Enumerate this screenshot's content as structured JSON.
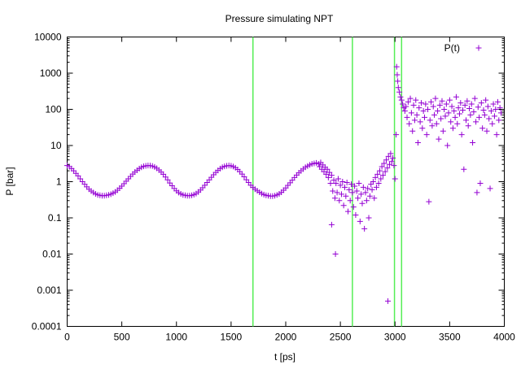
{
  "chart_data": {
    "type": "scatter",
    "title": "Pressure simulating NPT",
    "xlabel": "t [ps]",
    "ylabel": "P [bar]",
    "xlim": [
      0,
      4000
    ],
    "ylim": [
      0.0001,
      10000
    ],
    "yscale": "log",
    "grid": false,
    "legend_position": "top-right",
    "x_ticks": [
      0,
      500,
      1000,
      1500,
      2000,
      2500,
      3000,
      3500,
      4000
    ],
    "x_tick_labels": [
      "0",
      "500",
      "1000",
      "1500",
      "2000",
      "2500",
      "3000",
      "3500",
      "4000"
    ],
    "y_ticks": [
      0.0001,
      0.001,
      0.01,
      0.1,
      1,
      10,
      100,
      1000,
      10000
    ],
    "y_tick_labels": [
      "0.0001",
      "0.001",
      "0.01",
      "0.1",
      "1",
      "10",
      "100",
      "1000",
      "10000"
    ],
    "vertical_lines": [
      1700,
      2610,
      2995,
      3060
    ],
    "vertical_line_color": "#55ee55",
    "series": [
      {
        "name": "P(t)",
        "marker": "+",
        "color": "#9400d3",
        "points": [
          [
            0,
            2.8
          ],
          [
            20,
            2.6
          ],
          [
            40,
            2.3
          ],
          [
            60,
            2.0
          ],
          [
            80,
            1.7
          ],
          [
            100,
            1.45
          ],
          [
            120,
            1.2
          ],
          [
            140,
            1.0
          ],
          [
            160,
            0.85
          ],
          [
            180,
            0.72
          ],
          [
            200,
            0.62
          ],
          [
            220,
            0.55
          ],
          [
            240,
            0.5
          ],
          [
            260,
            0.46
          ],
          [
            280,
            0.43
          ],
          [
            300,
            0.42
          ],
          [
            320,
            0.41
          ],
          [
            340,
            0.41
          ],
          [
            360,
            0.42
          ],
          [
            380,
            0.43
          ],
          [
            400,
            0.45
          ],
          [
            420,
            0.48
          ],
          [
            440,
            0.52
          ],
          [
            460,
            0.58
          ],
          [
            480,
            0.66
          ],
          [
            500,
            0.75
          ],
          [
            520,
            0.88
          ],
          [
            540,
            1.03
          ],
          [
            560,
            1.2
          ],
          [
            580,
            1.4
          ],
          [
            600,
            1.62
          ],
          [
            620,
            1.85
          ],
          [
            640,
            2.08
          ],
          [
            660,
            2.3
          ],
          [
            680,
            2.5
          ],
          [
            700,
            2.65
          ],
          [
            720,
            2.75
          ],
          [
            740,
            2.8
          ],
          [
            760,
            2.78
          ],
          [
            780,
            2.7
          ],
          [
            800,
            2.55
          ],
          [
            820,
            2.35
          ],
          [
            840,
            2.1
          ],
          [
            860,
            1.85
          ],
          [
            880,
            1.6
          ],
          [
            900,
            1.35
          ],
          [
            920,
            1.12
          ],
          [
            940,
            0.92
          ],
          [
            960,
            0.77
          ],
          [
            980,
            0.65
          ],
          [
            1000,
            0.56
          ],
          [
            1020,
            0.5
          ],
          [
            1040,
            0.46
          ],
          [
            1060,
            0.43
          ],
          [
            1080,
            0.42
          ],
          [
            1100,
            0.41
          ],
          [
            1120,
            0.41
          ],
          [
            1140,
            0.42
          ],
          [
            1160,
            0.44
          ],
          [
            1180,
            0.47
          ],
          [
            1200,
            0.52
          ],
          [
            1220,
            0.59
          ],
          [
            1240,
            0.68
          ],
          [
            1260,
            0.8
          ],
          [
            1280,
            0.95
          ],
          [
            1300,
            1.12
          ],
          [
            1320,
            1.32
          ],
          [
            1340,
            1.55
          ],
          [
            1360,
            1.8
          ],
          [
            1380,
            2.05
          ],
          [
            1400,
            2.3
          ],
          [
            1420,
            2.5
          ],
          [
            1440,
            2.65
          ],
          [
            1460,
            2.75
          ],
          [
            1480,
            2.8
          ],
          [
            1500,
            2.75
          ],
          [
            1520,
            2.62
          ],
          [
            1540,
            2.42
          ],
          [
            1560,
            2.18
          ],
          [
            1580,
            1.9
          ],
          [
            1600,
            1.62
          ],
          [
            1620,
            1.36
          ],
          [
            1640,
            1.13
          ],
          [
            1660,
            0.95
          ],
          [
            1680,
            0.8
          ],
          [
            1700,
            0.69
          ],
          [
            1720,
            0.62
          ],
          [
            1740,
            0.56
          ],
          [
            1760,
            0.51
          ],
          [
            1780,
            0.47
          ],
          [
            1800,
            0.44
          ],
          [
            1820,
            0.42
          ],
          [
            1840,
            0.41
          ],
          [
            1860,
            0.4
          ],
          [
            1880,
            0.4
          ],
          [
            1900,
            0.41
          ],
          [
            1920,
            0.43
          ],
          [
            1940,
            0.46
          ],
          [
            1960,
            0.51
          ],
          [
            1980,
            0.58
          ],
          [
            2000,
            0.67
          ],
          [
            2020,
            0.79
          ],
          [
            2040,
            0.93
          ],
          [
            2060,
            1.1
          ],
          [
            2080,
            1.3
          ],
          [
            2100,
            1.52
          ],
          [
            2120,
            1.75
          ],
          [
            2140,
            2.0
          ],
          [
            2160,
            2.25
          ],
          [
            2180,
            2.5
          ],
          [
            2200,
            2.7
          ],
          [
            2220,
            2.9
          ],
          [
            2240,
            3.1
          ],
          [
            2260,
            3.2
          ],
          [
            2280,
            3.3
          ],
          [
            2300,
            3.1
          ],
          [
            2310,
            2.6
          ],
          [
            2320,
            3.4
          ],
          [
            2330,
            2.2
          ],
          [
            2340,
            2.9
          ],
          [
            2350,
            1.9
          ],
          [
            2360,
            2.5
          ],
          [
            2370,
            1.6
          ],
          [
            2380,
            2.2
          ],
          [
            2390,
            1.3
          ],
          [
            2400,
            1.8
          ],
          [
            2410,
            0.9
          ],
          [
            2420,
            1.5
          ],
          [
            2420,
            0.065
          ],
          [
            2430,
            0.55
          ],
          [
            2440,
            1.1
          ],
          [
            2450,
            0.35
          ],
          [
            2455,
            0.01
          ],
          [
            2460,
            0.9
          ],
          [
            2470,
            0.5
          ],
          [
            2480,
            1.2
          ],
          [
            2490,
            0.3
          ],
          [
            2500,
            0.8
          ],
          [
            2510,
            0.45
          ],
          [
            2520,
            1.0
          ],
          [
            2530,
            0.22
          ],
          [
            2540,
            0.7
          ],
          [
            2550,
            0.4
          ],
          [
            2560,
            0.95
          ],
          [
            2570,
            0.15
          ],
          [
            2580,
            0.6
          ],
          [
            2590,
            0.3
          ],
          [
            2600,
            0.85
          ],
          [
            2610,
            0.5
          ],
          [
            2620,
            0.2
          ],
          [
            2630,
            0.75
          ],
          [
            2640,
            0.12
          ],
          [
            2650,
            0.55
          ],
          [
            2660,
            0.35
          ],
          [
            2670,
            0.9
          ],
          [
            2680,
            0.08
          ],
          [
            2690,
            0.45
          ],
          [
            2700,
            0.25
          ],
          [
            2710,
            0.7
          ],
          [
            2720,
            0.05
          ],
          [
            2730,
            0.5
          ],
          [
            2740,
            0.3
          ],
          [
            2750,
            0.65
          ],
          [
            2760,
            0.1
          ],
          [
            2770,
            0.4
          ],
          [
            2780,
            0.85
          ],
          [
            2790,
            0.6
          ],
          [
            2800,
            1.0
          ],
          [
            2810,
            0.35
          ],
          [
            2820,
            1.3
          ],
          [
            2830,
            0.7
          ],
          [
            2840,
            1.6
          ],
          [
            2850,
            0.9
          ],
          [
            2860,
            2.0
          ],
          [
            2870,
            1.2
          ],
          [
            2880,
            2.6
          ],
          [
            2890,
            1.5
          ],
          [
            2900,
            3.2
          ],
          [
            2910,
            1.9
          ],
          [
            2920,
            4.0
          ],
          [
            2930,
            2.4
          ],
          [
            2935,
            0.0005
          ],
          [
            2940,
            5.0
          ],
          [
            2950,
            3.0
          ],
          [
            2960,
            6.0
          ],
          [
            2970,
            3.6
          ],
          [
            2980,
            4.5
          ],
          [
            2990,
            2.8
          ],
          [
            3000,
            1.2
          ],
          [
            3010,
            20
          ],
          [
            3015,
            1500
          ],
          [
            3020,
            900
          ],
          [
            3025,
            600
          ],
          [
            3030,
            400
          ],
          [
            3040,
            300
          ],
          [
            3050,
            220
          ],
          [
            3060,
            180
          ],
          [
            3070,
            140
          ],
          [
            3080,
            110
          ],
          [
            3090,
            90
          ],
          [
            3100,
            120
          ],
          [
            3110,
            60
          ],
          [
            3120,
            160
          ],
          [
            3130,
            40
          ],
          [
            3140,
            200
          ],
          [
            3150,
            80
          ],
          [
            3160,
            25
          ],
          [
            3170,
            130
          ],
          [
            3180,
            50
          ],
          [
            3190,
            180
          ],
          [
            3200,
            70
          ],
          [
            3210,
            12
          ],
          [
            3220,
            110
          ],
          [
            3230,
            45
          ],
          [
            3240,
            150
          ],
          [
            3250,
            30
          ],
          [
            3260,
            90
          ],
          [
            3270,
            60
          ],
          [
            3280,
            140
          ],
          [
            3290,
            20
          ],
          [
            3300,
            100
          ],
          [
            3310,
            0.28
          ],
          [
            3320,
            50
          ],
          [
            3330,
            160
          ],
          [
            3340,
            35
          ],
          [
            3350,
            120
          ],
          [
            3360,
            70
          ],
          [
            3370,
            200
          ],
          [
            3380,
            40
          ],
          [
            3390,
            90
          ],
          [
            3400,
            15
          ],
          [
            3410,
            130
          ],
          [
            3420,
            55
          ],
          [
            3430,
            170
          ],
          [
            3440,
            25
          ],
          [
            3450,
            100
          ],
          [
            3460,
            65
          ],
          [
            3470,
            140
          ],
          [
            3480,
            10
          ],
          [
            3490,
            80
          ],
          [
            3500,
            180
          ],
          [
            3510,
            45
          ],
          [
            3520,
            120
          ],
          [
            3530,
            30
          ],
          [
            3540,
            90
          ],
          [
            3550,
            60
          ],
          [
            3560,
            220
          ],
          [
            3570,
            40
          ],
          [
            3580,
            110
          ],
          [
            3590,
            75
          ],
          [
            3600,
            150
          ],
          [
            3610,
            20
          ],
          [
            3620,
            95
          ],
          [
            3630,
            2.2
          ],
          [
            3640,
            130
          ],
          [
            3650,
            50
          ],
          [
            3660,
            170
          ],
          [
            3670,
            35
          ],
          [
            3680,
            105
          ],
          [
            3690,
            70
          ],
          [
            3700,
            140
          ],
          [
            3710,
            12
          ],
          [
            3720,
            85
          ],
          [
            3730,
            200
          ],
          [
            3740,
            45
          ],
          [
            3750,
            0.5
          ],
          [
            3760,
            115
          ],
          [
            3770,
            60
          ],
          [
            3780,
            0.9
          ],
          [
            3790,
            150
          ],
          [
            3800,
            30
          ],
          [
            3810,
            95
          ],
          [
            3820,
            70
          ],
          [
            3830,
            180
          ],
          [
            3840,
            25
          ],
          [
            3850,
            120
          ],
          [
            3860,
            55
          ],
          [
            3870,
            0.65
          ],
          [
            3880,
            90
          ],
          [
            3890,
            40
          ],
          [
            3900,
            140
          ],
          [
            3910,
            65
          ],
          [
            3920,
            100
          ],
          [
            3930,
            20
          ],
          [
            3940,
            160
          ],
          [
            3950,
            50
          ],
          [
            3960,
            110
          ],
          [
            3970,
            80
          ]
        ]
      }
    ]
  }
}
